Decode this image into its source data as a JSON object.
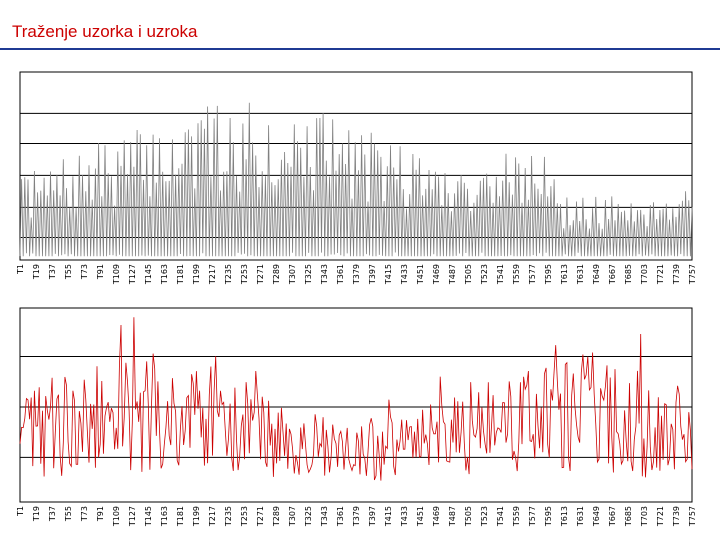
{
  "title": "Traženje uzorka i uzroka",
  "colors": {
    "title": "#cc0000",
    "rule": "#1f3a93",
    "top_series": "#808080",
    "bottom_series": "#cc0000",
    "grid": "#000000"
  },
  "chart_data": [
    {
      "type": "line",
      "series": [
        {
          "color": "#808080"
        }
      ],
      "grid": true,
      "legend": "none",
      "tick_labels": [
        "T1",
        "T19",
        "T37",
        "T55",
        "T73",
        "T91",
        "T109",
        "T127",
        "T145",
        "T163",
        "T181",
        "T199",
        "T217",
        "T235",
        "T253",
        "T271",
        "T289",
        "T307",
        "T325",
        "T343",
        "T361",
        "T379",
        "T397",
        "T415",
        "T433",
        "T451",
        "T469",
        "T487",
        "T505",
        "T523",
        "T541",
        "T559",
        "T577",
        "T595",
        "T613",
        "T631",
        "T649",
        "T667",
        "T685",
        "T703",
        "T721",
        "T739",
        "T757"
      ]
    },
    {
      "type": "line",
      "series": [
        {
          "color": "#cc0000"
        }
      ],
      "grid": true,
      "legend": "none",
      "tick_labels": [
        "T1",
        "T19",
        "T37",
        "T55",
        "T73",
        "T91",
        "T109",
        "T127",
        "T145",
        "T163",
        "T181",
        "T199",
        "T217",
        "T235",
        "T253",
        "T271",
        "T289",
        "T307",
        "T325",
        "T343",
        "T361",
        "T379",
        "T397",
        "T415",
        "T433",
        "T451",
        "T469",
        "T487",
        "T505",
        "T523",
        "T541",
        "T559",
        "T577",
        "T595",
        "T613",
        "T631",
        "T649",
        "T667",
        "T685",
        "T703",
        "T721",
        "T739",
        "T757"
      ]
    }
  ]
}
